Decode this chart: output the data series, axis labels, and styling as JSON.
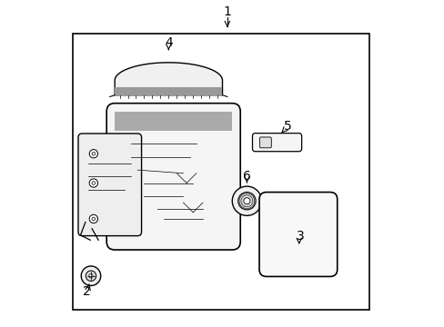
{
  "background_color": "#ffffff",
  "line_color": "#000000",
  "text_color": "#000000",
  "figsize": [
    4.89,
    3.6
  ],
  "dpi": 100,
  "label_fs": 10
}
